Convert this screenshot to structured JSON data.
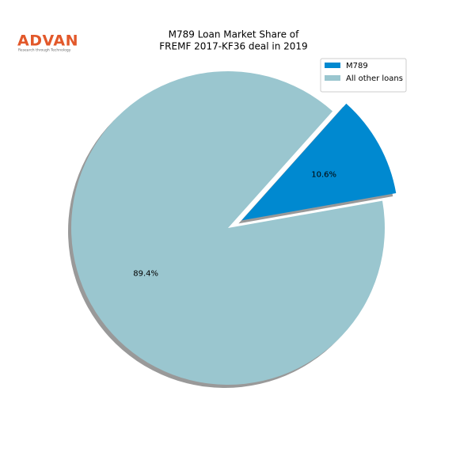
{
  "logo": {
    "name": "ADVAN",
    "tagline": "Research through Technology"
  },
  "chart_data": {
    "type": "pie",
    "title": [
      "M789 Loan Market Share of",
      "FREMF 2017-KF36 deal in 2019"
    ],
    "categories": [
      "M789",
      "All other loans"
    ],
    "values": [
      10.6,
      89.4
    ],
    "value_labels": [
      "10.6%",
      "89.4%"
    ],
    "colors": [
      "#0089d0",
      "#9ac6cf"
    ],
    "explode": [
      0.1,
      0
    ],
    "shadow": true,
    "legend": "upper right"
  }
}
